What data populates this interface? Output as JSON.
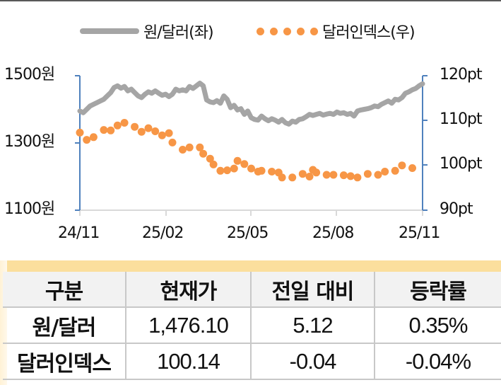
{
  "legend": {
    "series1_label": "원/달러(좌)",
    "series2_label": "달러인덱스(우)"
  },
  "axes": {
    "left_ticks": [
      "1500원",
      "1300원",
      "1100원"
    ],
    "right_ticks": [
      "120pt",
      "110pt",
      "100pt",
      "90pt"
    ],
    "x_ticks": [
      "24/11",
      "25/02",
      "25/05",
      "25/08",
      "25/11"
    ]
  },
  "colors": {
    "krw_line": "#a5a5a5",
    "dxy_dots": "#f79646",
    "axis": "#4f81bd",
    "table_band": "#fbdf9d",
    "table_header_bg": "#f2f2f2"
  },
  "table": {
    "headers": [
      "구분",
      "현재가",
      "전일 대비",
      "등락률"
    ],
    "rows": [
      {
        "label": "원/달러",
        "price": "1,476.10",
        "change": "5.12",
        "rate": "0.35%"
      },
      {
        "label": "달러인덱스",
        "price": "100.14",
        "change": "-0.04",
        "rate": "-0.04%"
      }
    ]
  },
  "chart_data": {
    "type": "line",
    "title": "",
    "xlabel": "",
    "ylabel": "원/달러 (좌), 달러인덱스 (우)",
    "x_tick_labels": [
      "24/11",
      "25/02",
      "25/05",
      "25/08",
      "25/11"
    ],
    "legend_position": "top",
    "grid": false,
    "ylim_left": [
      1100,
      1500
    ],
    "ylim_right": [
      90,
      120
    ],
    "series": [
      {
        "name": "원/달러(좌)",
        "axis": "left",
        "style": "line",
        "color": "#a5a5a5",
        "x_fraction": [
          0.0,
          0.01,
          0.02,
          0.03,
          0.04,
          0.05,
          0.06,
          0.07,
          0.08,
          0.09,
          0.1,
          0.11,
          0.12,
          0.13,
          0.14,
          0.15,
          0.16,
          0.17,
          0.18,
          0.19,
          0.2,
          0.21,
          0.22,
          0.23,
          0.24,
          0.25,
          0.26,
          0.27,
          0.28,
          0.29,
          0.3,
          0.31,
          0.32,
          0.33,
          0.34,
          0.35,
          0.36,
          0.37,
          0.38,
          0.39,
          0.4,
          0.41,
          0.42,
          0.43,
          0.44,
          0.45,
          0.46,
          0.47,
          0.48,
          0.49,
          0.5,
          0.51,
          0.52,
          0.53,
          0.54,
          0.55,
          0.56,
          0.57,
          0.58,
          0.59,
          0.6,
          0.61,
          0.62,
          0.63,
          0.64,
          0.65,
          0.66,
          0.67,
          0.68,
          0.69,
          0.7,
          0.71,
          0.72,
          0.73,
          0.74,
          0.75,
          0.76,
          0.77,
          0.78,
          0.79,
          0.8,
          0.81,
          0.82,
          0.83,
          0.84,
          0.85,
          0.86,
          0.87,
          0.88,
          0.89,
          0.9,
          0.91,
          0.92,
          0.93,
          0.94,
          0.95,
          0.96,
          0.97,
          0.98,
          0.99,
          1.0
        ],
        "values": [
          1395,
          1390,
          1400,
          1410,
          1415,
          1420,
          1425,
          1430,
          1440,
          1450,
          1465,
          1470,
          1463,
          1468,
          1455,
          1460,
          1450,
          1440,
          1435,
          1445,
          1452,
          1448,
          1455,
          1448,
          1442,
          1445,
          1438,
          1445,
          1460,
          1455,
          1458,
          1455,
          1468,
          1462,
          1470,
          1478,
          1470,
          1428,
          1422,
          1420,
          1426,
          1418,
          1440,
          1430,
          1405,
          1412,
          1398,
          1402,
          1385,
          1395,
          1375,
          1370,
          1368,
          1380,
          1372,
          1366,
          1372,
          1368,
          1362,
          1370,
          1360,
          1356,
          1365,
          1362,
          1370,
          1372,
          1378,
          1385,
          1382,
          1385,
          1388,
          1383,
          1386,
          1388,
          1385,
          1392,
          1388,
          1390,
          1385,
          1388,
          1380,
          1395,
          1398,
          1400,
          1402,
          1405,
          1410,
          1408,
          1415,
          1420,
          1425,
          1418,
          1430,
          1428,
          1435,
          1448,
          1452,
          1458,
          1462,
          1470,
          1476
        ]
      },
      {
        "name": "달러인덱스(우)",
        "axis": "right",
        "style": "dots",
        "color": "#f79646",
        "x_fraction": [
          0.0,
          0.02,
          0.04,
          0.07,
          0.09,
          0.11,
          0.13,
          0.16,
          0.18,
          0.2,
          0.22,
          0.24,
          0.26,
          0.27,
          0.3,
          0.32,
          0.35,
          0.36,
          0.38,
          0.39,
          0.41,
          0.43,
          0.45,
          0.46,
          0.48,
          0.5,
          0.52,
          0.53,
          0.56,
          0.58,
          0.59,
          0.62,
          0.65,
          0.67,
          0.68,
          0.69,
          0.72,
          0.74,
          0.77,
          0.79,
          0.81,
          0.84,
          0.87,
          0.89,
          0.92,
          0.94,
          0.97
        ],
        "values": [
          107.3,
          105.7,
          106.3,
          107.9,
          107.8,
          108.9,
          109.5,
          108.6,
          107.5,
          108.3,
          107.6,
          106.7,
          107.2,
          105.1,
          103.5,
          104.0,
          104.0,
          102.6,
          101.5,
          100.2,
          98.8,
          98.9,
          99.3,
          101.0,
          100.3,
          99.3,
          98.6,
          98.8,
          98.6,
          98.4,
          97.3,
          97.3,
          98.1,
          97.5,
          99.0,
          98.4,
          97.9,
          97.9,
          97.8,
          97.6,
          97.3,
          98.1,
          97.9,
          98.6,
          98.8,
          100.0,
          99.4
        ]
      }
    ],
    "current": {
      "krw_usd": 1476.1,
      "krw_usd_change": 5.12,
      "krw_usd_rate_pct": 0.35,
      "dollar_index": 100.14,
      "dollar_index_change": -0.04,
      "dollar_index_rate_pct": -0.04
    }
  }
}
